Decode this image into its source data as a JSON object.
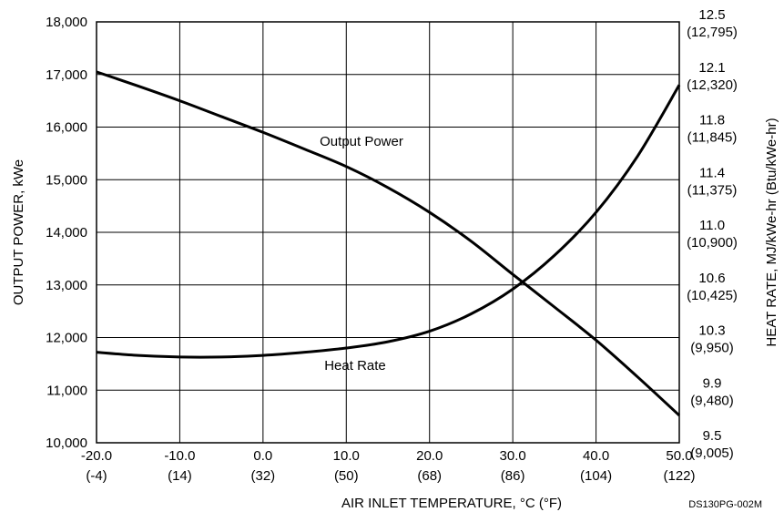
{
  "chart_data": {
    "type": "line",
    "title": "",
    "xlabel": "AIR INLET TEMPERATURE, °C (°F)",
    "ylabel": "OUTPUT POWER, kWe",
    "y2label": "HEAT RATE, MJ/kWe-hr (Btu/kWe-hr)",
    "figure_code": "DS130PG-002M",
    "grid": true,
    "xlim": [
      -20,
      50
    ],
    "ylim": [
      10000,
      18000
    ],
    "x_ticks": [
      {
        "value": -20,
        "label": "-20.0",
        "sub": "(-4)"
      },
      {
        "value": -10,
        "label": "-10.0",
        "sub": "(14)"
      },
      {
        "value": 0,
        "label": "0.0",
        "sub": "(32)"
      },
      {
        "value": 10,
        "label": "10.0",
        "sub": "(50)"
      },
      {
        "value": 20,
        "label": "20.0",
        "sub": "(68)"
      },
      {
        "value": 30,
        "label": "30.0",
        "sub": "(86)"
      },
      {
        "value": 40,
        "label": "40.0",
        "sub": "(104)"
      },
      {
        "value": 50,
        "label": "50.0",
        "sub": "(122)"
      }
    ],
    "y_ticks": [
      {
        "value": 10000,
        "label": "10,000"
      },
      {
        "value": 11000,
        "label": "11,000"
      },
      {
        "value": 12000,
        "label": "12,000"
      },
      {
        "value": 13000,
        "label": "13,000"
      },
      {
        "value": 14000,
        "label": "14,000"
      },
      {
        "value": 15000,
        "label": "15,000"
      },
      {
        "value": 16000,
        "label": "16,000"
      },
      {
        "value": 17000,
        "label": "17,000"
      },
      {
        "value": 18000,
        "label": "18,000"
      }
    ],
    "y2_ticks": [
      {
        "value": 10000,
        "label": "9.5",
        "sub": "(9,005)"
      },
      {
        "value": 11000,
        "label": "9.9",
        "sub": "(9,480)"
      },
      {
        "value": 12000,
        "label": "10.3",
        "sub": "(9,950)"
      },
      {
        "value": 13000,
        "label": "10.6",
        "sub": "(10,425)"
      },
      {
        "value": 14000,
        "label": "11.0",
        "sub": "(10,900)"
      },
      {
        "value": 15000,
        "label": "11.4",
        "sub": "(11,375)"
      },
      {
        "value": 16000,
        "label": "11.8",
        "sub": "(11,845)"
      },
      {
        "value": 17000,
        "label": "12.1",
        "sub": "(12,320)"
      },
      {
        "value": 18000,
        "label": "12.5",
        "sub": "(12,795)"
      }
    ],
    "series": [
      {
        "name": "Output Power",
        "axis": "left",
        "x": [
          -20,
          -15,
          -10,
          -5,
          0,
          5,
          10,
          15,
          20,
          25,
          30,
          35,
          40,
          45,
          50
        ],
        "y": [
          17050,
          16780,
          16500,
          16200,
          15900,
          15580,
          15250,
          14850,
          14380,
          13830,
          13200,
          12580,
          11950,
          11250,
          10520
        ]
      },
      {
        "name": "Heat Rate",
        "axis": "right",
        "x": [
          -20,
          -15,
          -10,
          -5,
          0,
          5,
          10,
          15,
          20,
          25,
          30,
          35,
          40,
          45,
          50
        ],
        "y": [
          11720,
          11660,
          11630,
          11630,
          11660,
          11720,
          11800,
          11920,
          12120,
          12450,
          12920,
          13560,
          14380,
          15450,
          16800
        ]
      }
    ],
    "annotations": [
      {
        "text": "Output Power",
        "series": "Output Power"
      },
      {
        "text": "Heat Rate",
        "series": "Heat Rate"
      }
    ]
  }
}
